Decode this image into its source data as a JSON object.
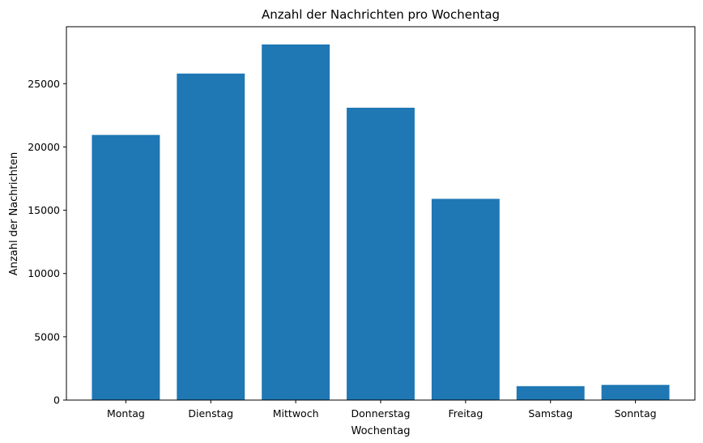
{
  "chart_data": {
    "type": "bar",
    "title": "Anzahl der Nachrichten pro Wochentag",
    "xlabel": "Wochentag",
    "ylabel": "Anzahl der Nachrichten",
    "categories": [
      "Montag",
      "Dienstag",
      "Mittwoch",
      "Donnerstag",
      "Freitag",
      "Samstag",
      "Sonntag"
    ],
    "values": [
      20950,
      25800,
      28100,
      23100,
      15900,
      1100,
      1200
    ],
    "ylim": [
      0,
      29500
    ],
    "yticks": [
      0,
      5000,
      10000,
      15000,
      20000,
      25000
    ],
    "grid": false,
    "legend": "none",
    "bar_color": "#1f77b4"
  }
}
